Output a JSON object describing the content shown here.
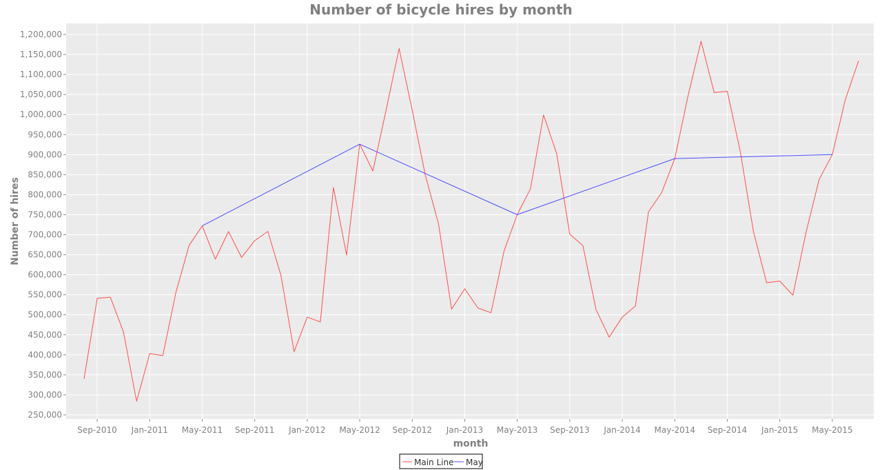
{
  "chart_data": {
    "type": "line",
    "title": "Number of bicycle hires by month",
    "xlabel": "month",
    "ylabel": "Number of hires",
    "ylim": [
      250000,
      1200000
    ],
    "grid": true,
    "legend_position": "bottom-center",
    "y_ticks": [
      "250,000",
      "300,000",
      "350,000",
      "400,000",
      "450,000",
      "500,000",
      "550,000",
      "600,000",
      "650,000",
      "700,000",
      "750,000",
      "800,000",
      "850,000",
      "900,000",
      "950,000",
      "1,000,000",
      "1,050,000",
      "1,100,000",
      "1,150,000",
      "1,200,000"
    ],
    "x_ticks": [
      "Sep-2010",
      "Jan-2011",
      "May-2011",
      "Sep-2011",
      "Jan-2012",
      "May-2012",
      "Sep-2012",
      "Jan-2013",
      "May-2013",
      "Sep-2013",
      "Jan-2014",
      "May-2014",
      "Sep-2014",
      "Jan-2015",
      "May-2015"
    ],
    "months": [
      "Aug-2010",
      "Sep-2010",
      "Oct-2010",
      "Nov-2010",
      "Dec-2010",
      "Jan-2011",
      "Feb-2011",
      "Mar-2011",
      "Apr-2011",
      "May-2011",
      "Jun-2011",
      "Jul-2011",
      "Aug-2011",
      "Sep-2011",
      "Oct-2011",
      "Nov-2011",
      "Dec-2011",
      "Jan-2012",
      "Feb-2012",
      "Mar-2012",
      "Apr-2012",
      "May-2012",
      "Jun-2012",
      "Jul-2012",
      "Aug-2012",
      "Sep-2012",
      "Oct-2012",
      "Nov-2012",
      "Dec-2012",
      "Jan-2013",
      "Feb-2013",
      "Mar-2013",
      "Apr-2013",
      "May-2013",
      "Jun-2013",
      "Jul-2013",
      "Aug-2013",
      "Sep-2013",
      "Oct-2013",
      "Nov-2013",
      "Dec-2013",
      "Jan-2014",
      "Feb-2014",
      "Mar-2014",
      "Apr-2014",
      "May-2014",
      "Jun-2014",
      "Jul-2014",
      "Aug-2014",
      "Sep-2014",
      "Oct-2014",
      "Nov-2014",
      "Dec-2014",
      "Jan-2015",
      "Feb-2015",
      "Mar-2015",
      "Apr-2015",
      "May-2015",
      "Jun-2015",
      "Jul-2015"
    ],
    "series": [
      {
        "name": "Main Line",
        "color": "#ff4d4d",
        "x": [
          "Aug-2010",
          "Sep-2010",
          "Oct-2010",
          "Nov-2010",
          "Dec-2010",
          "Jan-2011",
          "Feb-2011",
          "Mar-2011",
          "Apr-2011",
          "May-2011",
          "Jun-2011",
          "Jul-2011",
          "Aug-2011",
          "Sep-2011",
          "Oct-2011",
          "Nov-2011",
          "Dec-2011",
          "Jan-2012",
          "Feb-2012",
          "Mar-2012",
          "Apr-2012",
          "May-2012",
          "Jun-2012",
          "Jul-2012",
          "Aug-2012",
          "Sep-2012",
          "Oct-2012",
          "Nov-2012",
          "Dec-2012",
          "Jan-2013",
          "Feb-2013",
          "Mar-2013",
          "Apr-2013",
          "May-2013",
          "Jun-2013",
          "Jul-2013",
          "Aug-2013",
          "Sep-2013",
          "Oct-2013",
          "Nov-2013",
          "Dec-2013",
          "Jan-2014",
          "Feb-2014",
          "Mar-2014",
          "Apr-2014",
          "May-2014",
          "Jun-2014",
          "Jul-2014",
          "Aug-2014",
          "Sep-2014",
          "Oct-2014",
          "Nov-2014",
          "Dec-2014",
          "Jan-2015",
          "Feb-2015",
          "Mar-2015",
          "Apr-2015",
          "May-2015",
          "Jun-2015",
          "Jul-2015"
        ],
        "values": [
          340000,
          541000,
          544000,
          457000,
          284000,
          403000,
          398000,
          556000,
          673000,
          722000,
          639000,
          708000,
          643000,
          685000,
          708000,
          598000,
          408000,
          494000,
          482000,
          818000,
          649000,
          926000,
          859000,
          1010000,
          1165000,
          1010000,
          848000,
          727000,
          514000,
          565000,
          517000,
          505000,
          660000,
          750000,
          814000,
          999000,
          903000,
          701000,
          673000,
          513000,
          444000,
          494000,
          522000,
          757000,
          805000,
          890000,
          1045000,
          1183000,
          1055000,
          1058000,
          906000,
          706000,
          580000,
          584000,
          549000,
          706000,
          838000,
          900000,
          1038000,
          1134000
        ]
      },
      {
        "name": "May",
        "color": "#4d4dff",
        "x": [
          "May-2011",
          "May-2012",
          "May-2013",
          "May-2014",
          "May-2015"
        ],
        "values": [
          722000,
          926000,
          750000,
          890000,
          900000
        ]
      }
    ]
  }
}
